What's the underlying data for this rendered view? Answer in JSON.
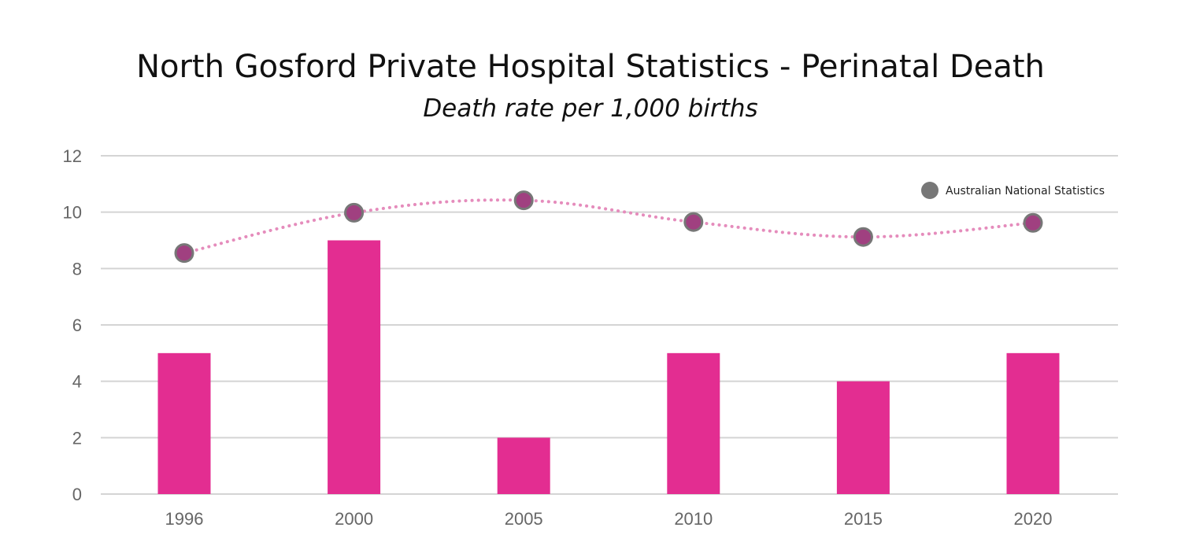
{
  "chart_data": {
    "type": "bar",
    "title": "North Gosford Private Hospital Statistics - Perinatal Death",
    "subtitle": "Death rate per 1,000 births",
    "xlabel": "",
    "ylabel": "",
    "categories": [
      "1996",
      "2000",
      "2005",
      "2010",
      "2015",
      "2020"
    ],
    "series": [
      {
        "kind": "bar",
        "values": [
          5,
          9,
          2,
          5,
          4,
          5
        ],
        "color": "#e32d91"
      },
      {
        "name": "Australian National Statistics",
        "kind": "line",
        "line_style": "dotted",
        "values": [
          8.55,
          9.98,
          10.42,
          9.65,
          9.12,
          9.62
        ],
        "color": "#e58cbc",
        "marker_color": "#a04080",
        "marker_edge_color": "#777777"
      }
    ],
    "yticks": [
      "0",
      "2",
      "4",
      "6",
      "8",
      "10",
      "12"
    ],
    "ylim": [
      0,
      12
    ],
    "grid": true,
    "legend_position": "top-right",
    "legend_marker_color": "#777777"
  }
}
